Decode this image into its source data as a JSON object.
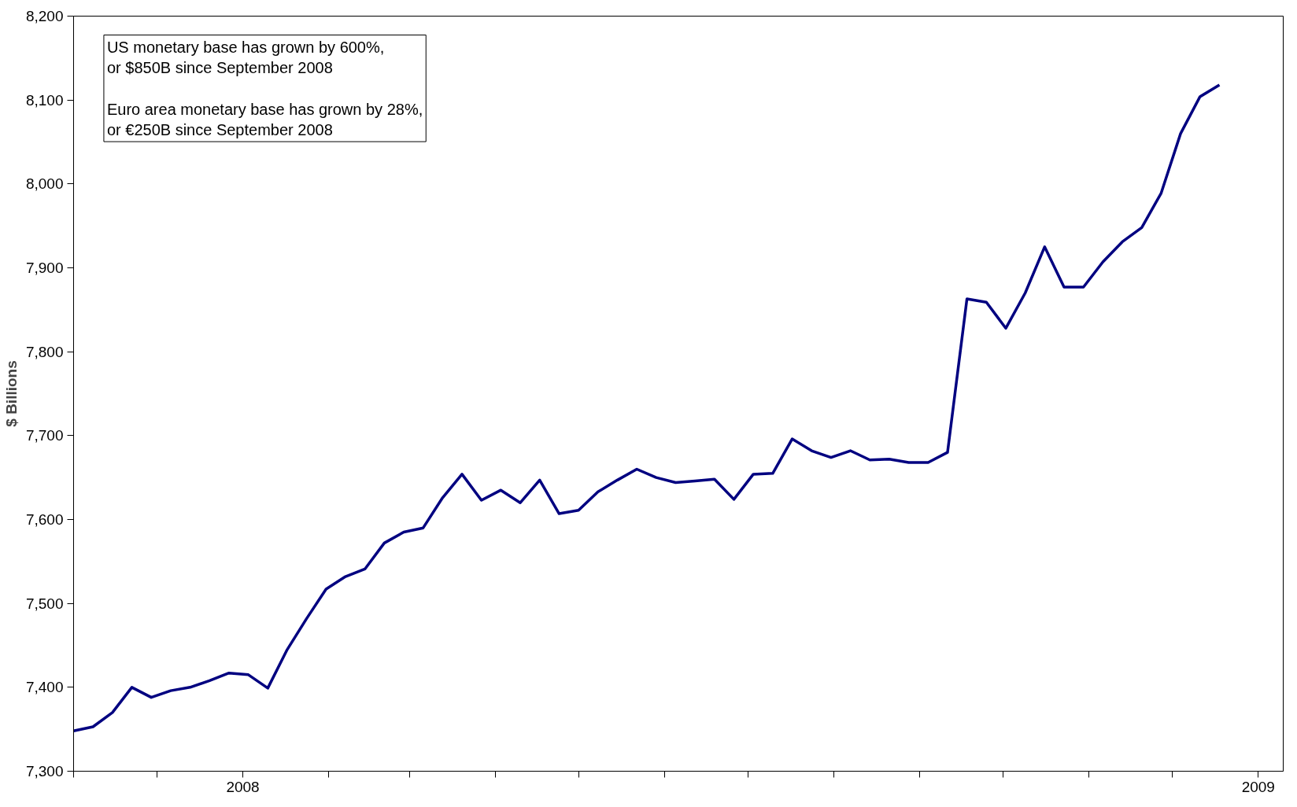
{
  "chart_data": {
    "type": "line",
    "ylabel": "$ Billions",
    "annotations": [
      "US monetary base has grown by 600%,\nor $850B since September 2008",
      "Euro area monetary base has grown by 28%,\nor €250B since September 2008"
    ],
    "x": [
      "2007-11-01",
      "2007-11-08",
      "2007-11-15",
      "2007-11-22",
      "2007-11-29",
      "2007-12-06",
      "2007-12-13",
      "2007-12-20",
      "2007-12-27",
      "2008-01-03",
      "2008-01-10",
      "2008-01-17",
      "2008-01-24",
      "2008-01-31",
      "2008-02-07",
      "2008-02-14",
      "2008-02-21",
      "2008-02-28",
      "2008-03-06",
      "2008-03-13",
      "2008-03-20",
      "2008-03-27",
      "2008-04-03",
      "2008-04-10",
      "2008-04-17",
      "2008-04-24",
      "2008-05-01",
      "2008-05-08",
      "2008-05-15",
      "2008-05-22",
      "2008-05-29",
      "2008-06-05",
      "2008-06-12",
      "2008-06-19",
      "2008-06-26",
      "2008-07-03",
      "2008-07-10",
      "2008-07-17",
      "2008-07-24",
      "2008-07-31",
      "2008-08-07",
      "2008-08-14",
      "2008-08-21",
      "2008-08-28",
      "2008-09-04",
      "2008-09-11",
      "2008-09-18",
      "2008-09-25",
      "2008-10-02",
      "2008-10-09",
      "2008-10-16",
      "2008-10-23",
      "2008-10-30",
      "2008-11-06",
      "2008-11-13",
      "2008-11-20",
      "2008-11-27",
      "2008-12-04",
      "2008-12-11",
      "2008-12-18"
    ],
    "series": [
      {
        "color": "#000080",
        "values": [
          7348,
          7353,
          7370,
          7400,
          7388,
          7396,
          7400,
          7408,
          7417,
          7415,
          7399,
          7445,
          7482,
          7517,
          7532,
          7541,
          7572,
          7585,
          7590,
          7626,
          7654,
          7623,
          7635,
          7620,
          7647,
          7607,
          7611,
          7633,
          7647,
          7660,
          7650,
          7644,
          7646,
          7648,
          7624,
          7654,
          7655,
          7696,
          7682,
          7674,
          7682,
          7671,
          7672,
          7668,
          7668,
          7680,
          7863,
          7859,
          7828,
          7870,
          7925,
          7877,
          7877,
          7907,
          7931,
          7948,
          7989,
          8060,
          8104,
          8118
        ]
      }
    ],
    "xlim": [
      "2007-11-01",
      "2009-01-10"
    ],
    "xticks": [
      {
        "value": "2007-11-01",
        "label": null
      },
      {
        "value": "2007-12-01",
        "label": null
      },
      {
        "value": "2008-01-01",
        "label": "2008"
      },
      {
        "value": "2008-02-01",
        "label": null
      },
      {
        "value": "2008-03-01",
        "label": null
      },
      {
        "value": "2008-04-01",
        "label": null
      },
      {
        "value": "2008-05-01",
        "label": null
      },
      {
        "value": "2008-06-01",
        "label": null
      },
      {
        "value": "2008-07-01",
        "label": null
      },
      {
        "value": "2008-08-01",
        "label": null
      },
      {
        "value": "2008-09-01",
        "label": null
      },
      {
        "value": "2008-10-01",
        "label": null
      },
      {
        "value": "2008-11-01",
        "label": null
      },
      {
        "value": "2008-12-01",
        "label": null
      },
      {
        "value": "2009-01-01",
        "label": "2009"
      }
    ],
    "ylim": [
      7300,
      8200
    ],
    "yticks": [
      {
        "value": 7300,
        "label": "7,300"
      },
      {
        "value": 7400,
        "label": "7,400"
      },
      {
        "value": 7500,
        "label": "7,500"
      },
      {
        "value": 7600,
        "label": "7,600"
      },
      {
        "value": 7700,
        "label": "7,700"
      },
      {
        "value": 7800,
        "label": "7,800"
      },
      {
        "value": 7900,
        "label": "7,900"
      },
      {
        "value": 8000,
        "label": "8,000"
      },
      {
        "value": 8100,
        "label": "8,100"
      },
      {
        "value": 8200,
        "label": "8,200"
      }
    ],
    "line_style": "solid"
  }
}
